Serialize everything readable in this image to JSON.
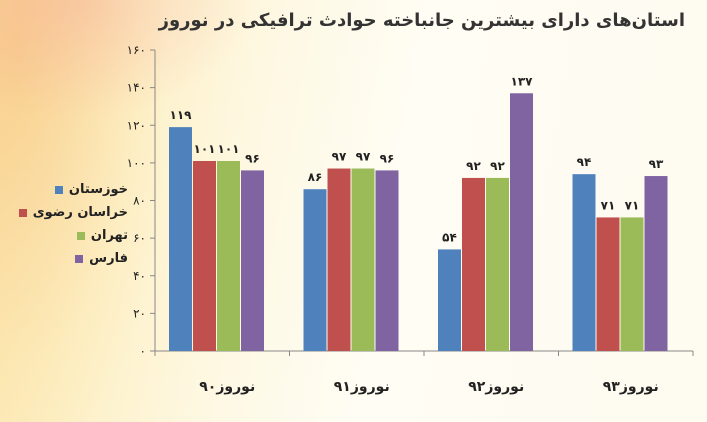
{
  "chart_data": {
    "type": "bar",
    "title": "استان‌های دارای بیشترین جانباخته حوادث ترافیکی در نوروز",
    "categories": [
      "نوروز۹۰",
      "نوروز۹۱",
      "نوروز۹۲",
      "نوروز۹۳"
    ],
    "series": [
      {
        "name": "خوزستان",
        "color": "#4f81bd",
        "values": [
          119,
          86,
          54,
          94
        ],
        "labels": [
          "۱۱۹",
          "۸۶",
          "۵۴",
          "۹۴"
        ]
      },
      {
        "name": "خراسان رضوی",
        "color": "#c0504d",
        "values": [
          101,
          97,
          92,
          71
        ],
        "labels": [
          "۱۰۱",
          "۹۷",
          "۹۲",
          "۷۱"
        ]
      },
      {
        "name": "تهران",
        "color": "#9bbb59",
        "values": [
          101,
          97,
          92,
          71
        ],
        "labels": [
          "۱۰۱",
          "۹۷",
          "۹۲",
          "۷۱"
        ]
      },
      {
        "name": "فارس",
        "color": "#8064a2",
        "values": [
          96,
          96,
          137,
          93
        ],
        "labels": [
          "۹۶",
          "۹۶",
          "۱۳۷",
          "۹۳"
        ]
      }
    ],
    "ylim": [
      0,
      160
    ],
    "yticks": [
      0,
      20,
      40,
      60,
      80,
      100,
      120,
      140,
      160
    ],
    "ytick_labels": [
      "۰",
      "۲۰",
      "۴۰",
      "۶۰",
      "۸۰",
      "۱۰۰",
      "۱۲۰",
      "۱۴۰",
      "۱۶۰"
    ],
    "grid": false,
    "legend": "left"
  }
}
